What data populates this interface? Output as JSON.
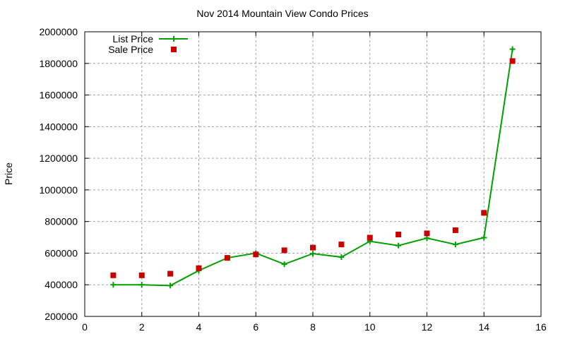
{
  "chart_data": {
    "type": "line",
    "title": "Nov 2014 Mountain View Condo Prices",
    "xlabel": "",
    "ylabel": "Price",
    "xlim": [
      0,
      16
    ],
    "ylim": [
      200000,
      2000000
    ],
    "x_ticks": [
      0,
      2,
      4,
      6,
      8,
      10,
      12,
      14,
      16
    ],
    "y_ticks": [
      200000,
      400000,
      600000,
      800000,
      1000000,
      1200000,
      1400000,
      1600000,
      1800000,
      2000000
    ],
    "grid": true,
    "legend_position": "top-left",
    "x": [
      1,
      2,
      3,
      4,
      5,
      6,
      7,
      8,
      9,
      10,
      11,
      12,
      13,
      14,
      15
    ],
    "series": [
      {
        "name": "List Price",
        "style": "linespoints",
        "marker": "plus",
        "color": "#00a000",
        "values": [
          400000,
          400000,
          395000,
          490000,
          570000,
          600000,
          530000,
          597000,
          575000,
          675000,
          648000,
          695000,
          655000,
          698000,
          1890000
        ]
      },
      {
        "name": "Sale Price",
        "style": "points",
        "marker": "square",
        "color": "#cc0000",
        "values": [
          460000,
          460000,
          470000,
          505000,
          570000,
          592000,
          618000,
          635000,
          655000,
          698000,
          718000,
          725000,
          745000,
          855000,
          1815000
        ]
      }
    ]
  },
  "labels": {
    "title": "Nov 2014 Mountain View Condo Prices",
    "ylabel": "Price"
  }
}
